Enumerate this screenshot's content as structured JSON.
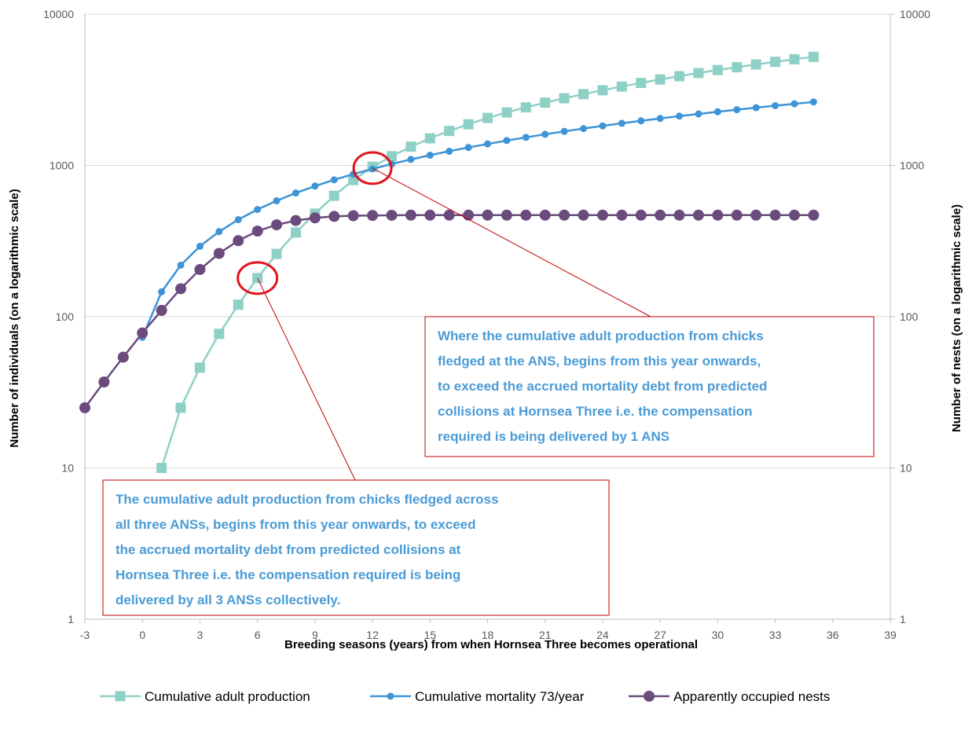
{
  "chart_data": {
    "type": "line",
    "xlabel": "Breeding seasons (years) from when Hornsea Three becomes operational",
    "ylabel": "Number of individuals (on a logarithmic scale)",
    "y2label": "Number of nests (on a logarithmic scale)",
    "xlim": [
      -3,
      39
    ],
    "xticks": [
      "-3",
      "0",
      "3",
      "6",
      "9",
      "12",
      "15",
      "18",
      "21",
      "24",
      "27",
      "30",
      "33",
      "36",
      "39"
    ],
    "ylim": [
      1,
      10000
    ],
    "yscale": "log",
    "yticks": [
      "1",
      "10",
      "100",
      "1000",
      "10000"
    ],
    "y2lim": [
      1,
      10000
    ],
    "y2ticks": [
      "1",
      "10",
      "100",
      "1000",
      "10000"
    ],
    "grid": "horizontal",
    "legend_position": "bottom",
    "series": [
      {
        "name": "Cumulative adult production",
        "color": "#8fd0c6",
        "marker": "square",
        "x": [
          1,
          2,
          3,
          4,
          5,
          6,
          7,
          8,
          9,
          10,
          11,
          12,
          13,
          14,
          15,
          16,
          17,
          18,
          19,
          20,
          21,
          22,
          23,
          24,
          25,
          26,
          27,
          28,
          29,
          30,
          31,
          32,
          33,
          34,
          35
        ],
        "values": [
          10,
          25,
          46,
          77,
          120,
          180,
          260,
          360,
          480,
          630,
          800,
          980,
          1150,
          1330,
          1510,
          1690,
          1870,
          2060,
          2240,
          2420,
          2600,
          2780,
          2960,
          3140,
          3320,
          3510,
          3700,
          3890,
          4080,
          4270,
          4460,
          4650,
          4840,
          5030,
          5220
        ]
      },
      {
        "name": "Cumulative mortality 73/year",
        "color": "#3d94d6",
        "marker": "circle",
        "x": [
          0,
          1,
          2,
          3,
          4,
          5,
          6,
          7,
          8,
          9,
          10,
          11,
          12,
          13,
          14,
          15,
          16,
          17,
          18,
          19,
          20,
          21,
          22,
          23,
          24,
          25,
          26,
          27,
          28,
          29,
          30,
          31,
          32,
          33,
          34,
          35
        ],
        "values": [
          73,
          146,
          219,
          292,
          365,
          438,
          511,
          584,
          657,
          730,
          803,
          876,
          949,
          1022,
          1095,
          1168,
          1241,
          1314,
          1387,
          1460,
          1533,
          1606,
          1679,
          1752,
          1825,
          1898,
          1971,
          2044,
          2117,
          2190,
          2263,
          2336,
          2409,
          2482,
          2555,
          2628
        ]
      },
      {
        "name": "Apparently occupied nests",
        "color": "#6b4a7e",
        "marker": "circle",
        "x": [
          -3,
          -2,
          -1,
          0,
          1,
          2,
          3,
          4,
          5,
          6,
          7,
          8,
          9,
          10,
          11,
          12,
          13,
          14,
          15,
          16,
          17,
          18,
          19,
          20,
          21,
          22,
          23,
          24,
          25,
          26,
          27,
          28,
          29,
          30,
          31,
          32,
          33,
          34,
          35
        ],
        "values": [
          25,
          37,
          54,
          78,
          110,
          153,
          205,
          262,
          318,
          368,
          405,
          432,
          450,
          460,
          465,
          467,
          468,
          469,
          469,
          469,
          469,
          469,
          469,
          469,
          469,
          469,
          469,
          469,
          469,
          469,
          469,
          469,
          469,
          469,
          469,
          469,
          469,
          469,
          469
        ]
      }
    ],
    "annotations": [
      {
        "lines": [
          "Where the cumulative adult production from chicks",
          "fledged at the ANS, begins from this year onwards,",
          "to exceed the accrued mortality debt from predicted",
          "collisions at Hornsea Three i.e. the compensation",
          "required is being delivered by 1 ANS"
        ],
        "target_x": 12,
        "target_y": 960
      },
      {
        "lines": [
          "The cumulative adult production from chicks fledged across",
          "all three ANSs, begins from this year onwards, to exceed",
          "the accrued mortality debt from predicted collisions at",
          "Hornsea Three i.e. the compensation required is being",
          "delivered by all 3 ANSs collectively."
        ],
        "target_x": 6,
        "target_y": 180
      }
    ]
  }
}
